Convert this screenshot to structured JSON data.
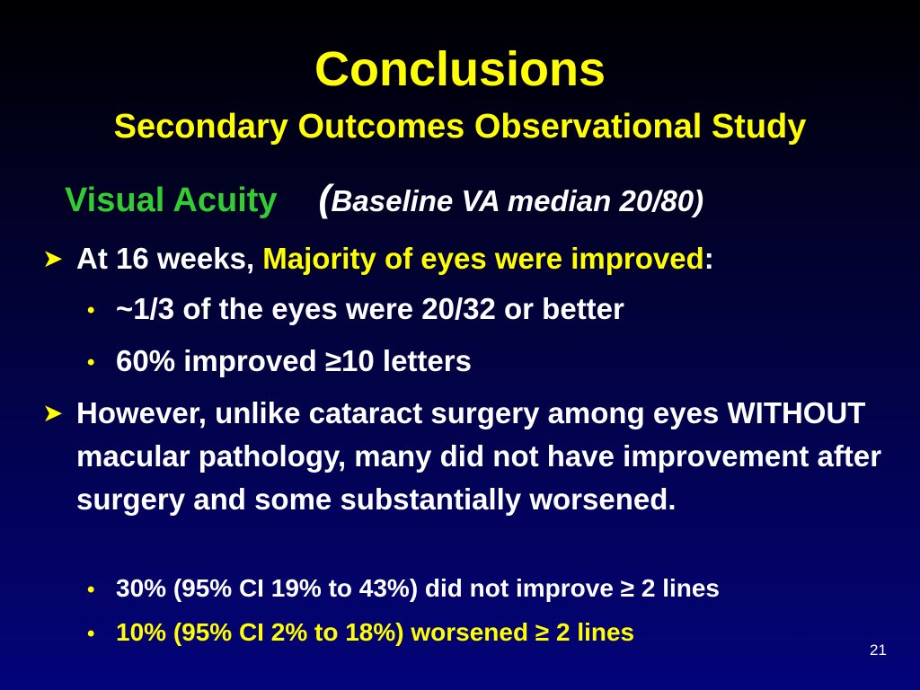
{
  "slide": {
    "title": "Conclusions",
    "subtitle": "Secondary Outcomes Observational Study",
    "section": {
      "label": "Visual Acuity",
      "paren_open": "(",
      "note": "Baseline VA median 20/80)"
    },
    "bullets": [
      {
        "prefix": "At 16 weeks, ",
        "highlight": "Majority of eyes were improved",
        "suffix": ":",
        "subs": [
          "~1/3 of the eyes were 20/32 or better",
          "60% improved ≥10 letters"
        ]
      },
      {
        "text": "However, unlike cataract surgery among eyes WITHOUT macular pathology, many did not have improvement after surgery and some substantially worsened.",
        "subs": [
          "30% (95% CI 19% to 43%) did not improve ≥ 2 lines",
          "10% (95% CI 2% to 18%) worsened ≥ 2 lines"
        ]
      }
    ],
    "page_number": "21"
  },
  "colors": {
    "title": "#ffff00",
    "section_label": "#33cc33",
    "highlight": "#ffff00",
    "body_text": "#ffffff",
    "background_top": "#000000",
    "background_bottom": "#03037a"
  },
  "icons": {
    "main_bullet": "arrowhead-bullet-icon",
    "sub_bullet": "dot-bullet-icon"
  }
}
